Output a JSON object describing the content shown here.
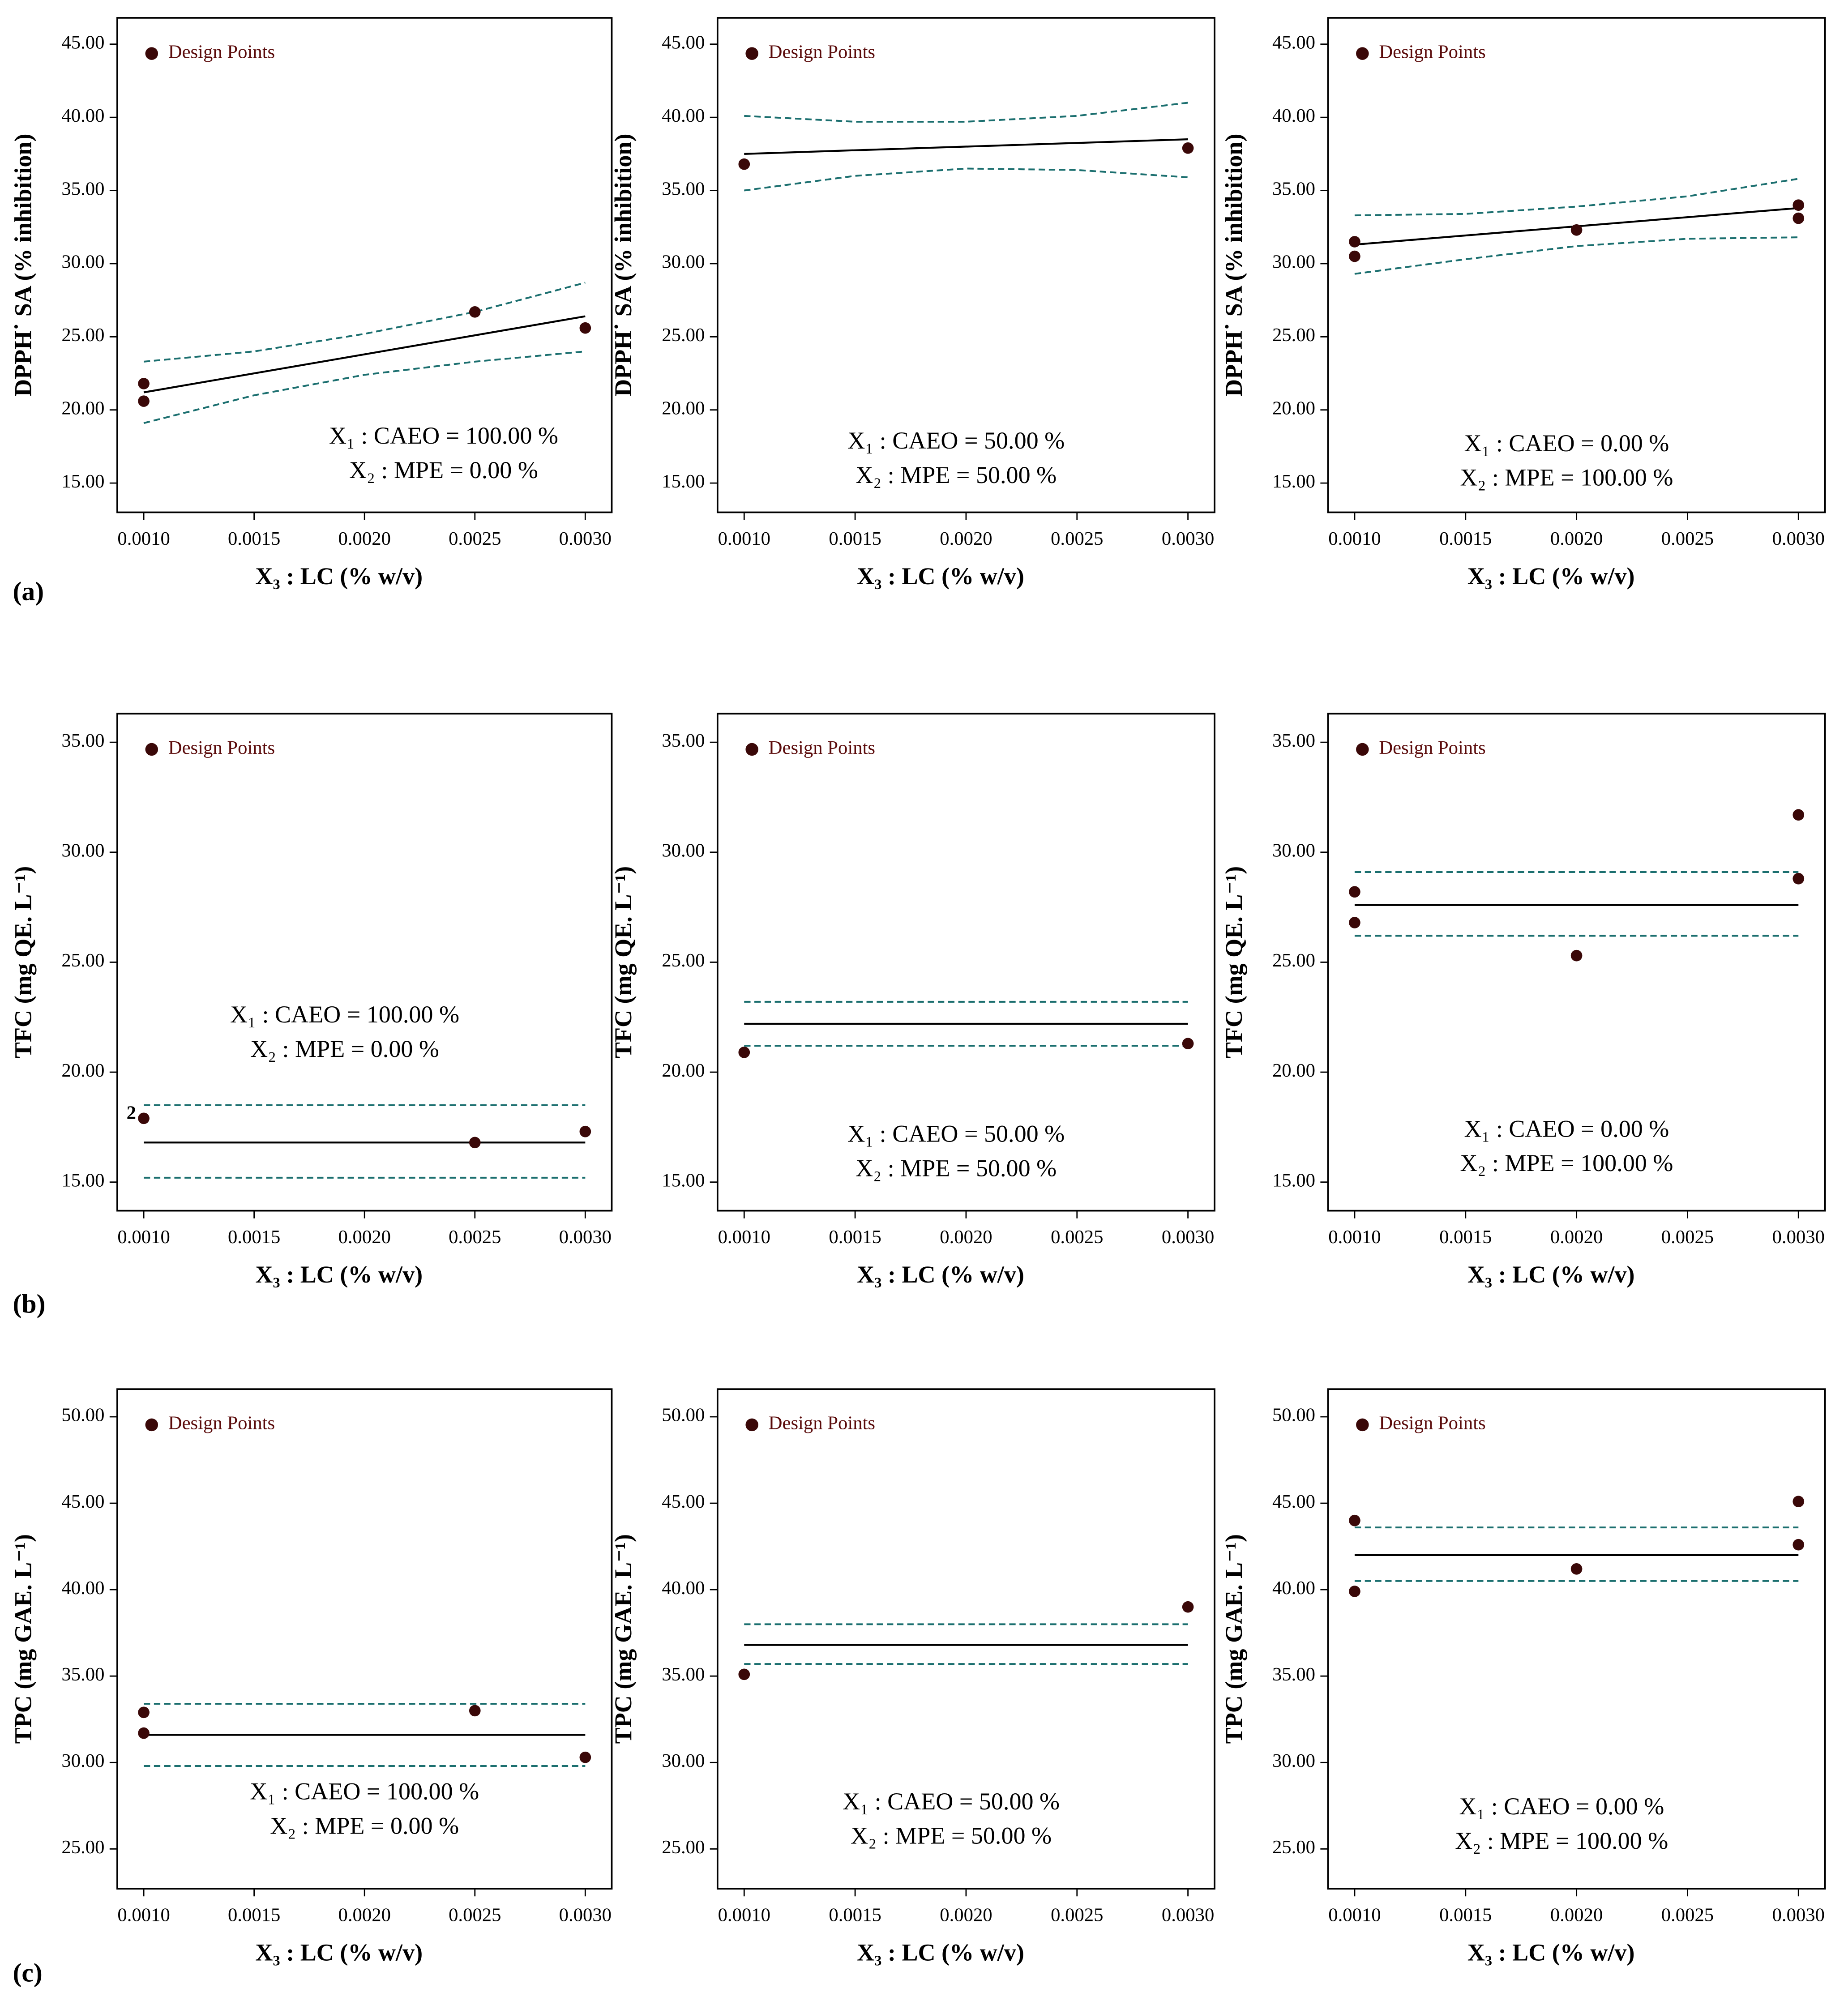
{
  "panel_labels": [
    "(a)",
    "(b)",
    "(c)"
  ],
  "chart_data": [
    {
      "type": "scatter",
      "xlabel": "X₃ : LC (% w/v)",
      "ylabel": "DPPH˙ SA (% inhibition)",
      "annotations": [
        "X₁ : CAEO = 100.00 %",
        "X₂ : MPE = 0.00 %"
      ],
      "xlim": [
        0.00088,
        0.00312
      ],
      "xticks": [
        {
          "value": 0.001,
          "label": "0.0010"
        },
        {
          "value": 0.0015,
          "label": "0.0015"
        },
        {
          "value": 0.002,
          "label": "0.0020"
        },
        {
          "value": 0.0025,
          "label": "0.0025"
        },
        {
          "value": 0.003,
          "label": "0.0030"
        }
      ],
      "ylim": [
        13,
        46.8
      ],
      "yticks": [
        {
          "value": 15,
          "label": "15.00"
        },
        {
          "value": 20,
          "label": "20.00"
        },
        {
          "value": 25,
          "label": "25.00"
        },
        {
          "value": 30,
          "label": "30.00"
        },
        {
          "value": 35,
          "label": "35.00"
        },
        {
          "value": 40,
          "label": "40.00"
        },
        {
          "value": 45,
          "label": "45.00"
        }
      ],
      "points": {
        "name": "Design Points",
        "color": "#3a0808",
        "x": [
          0.001,
          0.001,
          0.0025,
          0.003
        ],
        "values": [
          21.8,
          20.6,
          26.7,
          25.6
        ]
      },
      "fit": {
        "color": "#000000",
        "x": [
          0.001,
          0.003
        ],
        "values": [
          21.2,
          26.4
        ]
      },
      "ci_upper": {
        "color": "#1b6f6f",
        "x": [
          0.001,
          0.0015,
          0.002,
          0.0025,
          0.003
        ],
        "values": [
          23.3,
          24.0,
          25.2,
          26.7,
          28.7
        ]
      },
      "ci_lower": {
        "color": "#1b6f6f",
        "x": [
          0.001,
          0.0015,
          0.002,
          0.0025,
          0.003
        ],
        "values": [
          19.1,
          21.0,
          22.4,
          23.3,
          24.0
        ]
      }
    },
    {
      "type": "scatter",
      "xlabel": "X₃ : LC (% w/v)",
      "ylabel": "DPPH˙ SA (% inhibition)",
      "annotations": [
        "X₁ : CAEO = 50.00 %",
        "X₂ : MPE = 50.00 %"
      ],
      "xlim": [
        0.00088,
        0.00312
      ],
      "xticks": [
        {
          "value": 0.001,
          "label": "0.0010"
        },
        {
          "value": 0.0015,
          "label": "0.0015"
        },
        {
          "value": 0.002,
          "label": "0.0020"
        },
        {
          "value": 0.0025,
          "label": "0.0025"
        },
        {
          "value": 0.003,
          "label": "0.0030"
        }
      ],
      "ylim": [
        13,
        46.8
      ],
      "yticks": [
        {
          "value": 15,
          "label": "15.00"
        },
        {
          "value": 20,
          "label": "20.00"
        },
        {
          "value": 25,
          "label": "25.00"
        },
        {
          "value": 30,
          "label": "30.00"
        },
        {
          "value": 35,
          "label": "35.00"
        },
        {
          "value": 40,
          "label": "40.00"
        },
        {
          "value": 45,
          "label": "45.00"
        }
      ],
      "points": {
        "name": "Design Points",
        "color": "#3a0808",
        "x": [
          0.001,
          0.003
        ],
        "values": [
          36.8,
          37.9
        ]
      },
      "fit": {
        "color": "#000000",
        "x": [
          0.001,
          0.003
        ],
        "values": [
          37.5,
          38.5
        ]
      },
      "ci_upper": {
        "color": "#1b6f6f",
        "x": [
          0.001,
          0.0015,
          0.002,
          0.0025,
          0.003
        ],
        "values": [
          40.1,
          39.7,
          39.7,
          40.1,
          41.0
        ]
      },
      "ci_lower": {
        "color": "#1b6f6f",
        "x": [
          0.001,
          0.0015,
          0.002,
          0.0025,
          0.003
        ],
        "values": [
          35.0,
          36.0,
          36.5,
          36.4,
          35.9
        ]
      }
    },
    {
      "type": "scatter",
      "xlabel": "X₃ : LC (% w/v)",
      "ylabel": "DPPH˙ SA (% inhibition)",
      "annotations": [
        "X₁ : CAEO = 0.00 %",
        "X₂ : MPE = 100.00 %"
      ],
      "xlim": [
        0.00088,
        0.00312
      ],
      "xticks": [
        {
          "value": 0.001,
          "label": "0.0010"
        },
        {
          "value": 0.0015,
          "label": "0.0015"
        },
        {
          "value": 0.002,
          "label": "0.0020"
        },
        {
          "value": 0.0025,
          "label": "0.0025"
        },
        {
          "value": 0.003,
          "label": "0.0030"
        }
      ],
      "ylim": [
        13,
        46.8
      ],
      "yticks": [
        {
          "value": 15,
          "label": "15.00"
        },
        {
          "value": 20,
          "label": "20.00"
        },
        {
          "value": 25,
          "label": "25.00"
        },
        {
          "value": 30,
          "label": "30.00"
        },
        {
          "value": 35,
          "label": "35.00"
        },
        {
          "value": 40,
          "label": "40.00"
        },
        {
          "value": 45,
          "label": "45.00"
        }
      ],
      "points": {
        "name": "Design Points",
        "color": "#3a0808",
        "x": [
          0.001,
          0.001,
          0.002,
          0.003,
          0.003
        ],
        "values": [
          31.5,
          30.5,
          32.3,
          34.0,
          33.1
        ]
      },
      "fit": {
        "color": "#000000",
        "x": [
          0.001,
          0.003
        ],
        "values": [
          31.3,
          33.8
        ]
      },
      "ci_upper": {
        "color": "#1b6f6f",
        "x": [
          0.001,
          0.0015,
          0.002,
          0.0025,
          0.003
        ],
        "values": [
          33.3,
          33.4,
          33.9,
          34.6,
          35.8
        ]
      },
      "ci_lower": {
        "color": "#1b6f6f",
        "x": [
          0.001,
          0.0015,
          0.002,
          0.0025,
          0.003
        ],
        "values": [
          29.3,
          30.3,
          31.2,
          31.7,
          31.8
        ]
      }
    },
    {
      "type": "scatter",
      "xlabel": "X₃ : LC (% w/v)",
      "ylabel": "TFC (mg QE. L⁻¹)",
      "annotations": [
        "X₁ : CAEO = 100.00 %",
        "X₂ : MPE = 0.00 %"
      ],
      "xlim": [
        0.00088,
        0.00312
      ],
      "xticks": [
        {
          "value": 0.001,
          "label": "0.0010"
        },
        {
          "value": 0.0015,
          "label": "0.0015"
        },
        {
          "value": 0.002,
          "label": "0.0020"
        },
        {
          "value": 0.0025,
          "label": "0.0025"
        },
        {
          "value": 0.003,
          "label": "0.0030"
        }
      ],
      "ylim": [
        13.7,
        36.3
      ],
      "yticks": [
        {
          "value": 15,
          "label": "15.00"
        },
        {
          "value": 20,
          "label": "20.00"
        },
        {
          "value": 25,
          "label": "25.00"
        },
        {
          "value": 30,
          "label": "30.00"
        },
        {
          "value": 35,
          "label": "35.00"
        }
      ],
      "points": {
        "name": "Design Points",
        "color": "#3a0808",
        "x": [
          0.001,
          0.0025,
          0.003
        ],
        "values": [
          17.9,
          16.8,
          17.3
        ],
        "point_labels": [
          "2",
          null,
          null
        ]
      },
      "fit": {
        "color": "#000000",
        "x": [
          0.001,
          0.003
        ],
        "values": [
          16.8,
          16.8
        ]
      },
      "ci_upper": {
        "color": "#1b6f6f",
        "x": [
          0.001,
          0.003
        ],
        "values": [
          18.5,
          18.5
        ]
      },
      "ci_lower": {
        "color": "#1b6f6f",
        "x": [
          0.001,
          0.003
        ],
        "values": [
          15.2,
          15.2
        ]
      }
    },
    {
      "type": "scatter",
      "xlabel": "X₃ : LC (% w/v)",
      "ylabel": "TFC (mg QE. L⁻¹)",
      "annotations": [
        "X₁ : CAEO = 50.00 %",
        "X₂ : MPE = 50.00 %"
      ],
      "xlim": [
        0.00088,
        0.00312
      ],
      "xticks": [
        {
          "value": 0.001,
          "label": "0.0010"
        },
        {
          "value": 0.0015,
          "label": "0.0015"
        },
        {
          "value": 0.002,
          "label": "0.0020"
        },
        {
          "value": 0.0025,
          "label": "0.0025"
        },
        {
          "value": 0.003,
          "label": "0.0030"
        }
      ],
      "ylim": [
        13.7,
        36.3
      ],
      "yticks": [
        {
          "value": 15,
          "label": "15.00"
        },
        {
          "value": 20,
          "label": "20.00"
        },
        {
          "value": 25,
          "label": "25.00"
        },
        {
          "value": 30,
          "label": "30.00"
        },
        {
          "value": 35,
          "label": "35.00"
        }
      ],
      "points": {
        "name": "Design Points",
        "color": "#3a0808",
        "x": [
          0.001,
          0.003
        ],
        "values": [
          20.9,
          21.3
        ]
      },
      "fit": {
        "color": "#000000",
        "x": [
          0.001,
          0.003
        ],
        "values": [
          22.2,
          22.2
        ]
      },
      "ci_upper": {
        "color": "#1b6f6f",
        "x": [
          0.001,
          0.003
        ],
        "values": [
          23.2,
          23.2
        ]
      },
      "ci_lower": {
        "color": "#1b6f6f",
        "x": [
          0.001,
          0.003
        ],
        "values": [
          21.2,
          21.2
        ]
      }
    },
    {
      "type": "scatter",
      "xlabel": "X₃ : LC (% w/v)",
      "ylabel": "TFC (mg QE. L⁻¹)",
      "annotations": [
        "X₁ : CAEO = 0.00 %",
        "X₂ : MPE = 100.00 %"
      ],
      "xlim": [
        0.00088,
        0.00312
      ],
      "xticks": [
        {
          "value": 0.001,
          "label": "0.0010"
        },
        {
          "value": 0.0015,
          "label": "0.0015"
        },
        {
          "value": 0.002,
          "label": "0.0020"
        },
        {
          "value": 0.0025,
          "label": "0.0025"
        },
        {
          "value": 0.003,
          "label": "0.0030"
        }
      ],
      "ylim": [
        13.7,
        36.3
      ],
      "yticks": [
        {
          "value": 15,
          "label": "15.00"
        },
        {
          "value": 20,
          "label": "20.00"
        },
        {
          "value": 25,
          "label": "25.00"
        },
        {
          "value": 30,
          "label": "30.00"
        },
        {
          "value": 35,
          "label": "35.00"
        }
      ],
      "points": {
        "name": "Design Points",
        "color": "#3a0808",
        "x": [
          0.001,
          0.001,
          0.002,
          0.003,
          0.003
        ],
        "values": [
          28.2,
          26.8,
          25.3,
          31.7,
          28.8
        ]
      },
      "fit": {
        "color": "#000000",
        "x": [
          0.001,
          0.003
        ],
        "values": [
          27.6,
          27.6
        ]
      },
      "ci_upper": {
        "color": "#1b6f6f",
        "x": [
          0.001,
          0.003
        ],
        "values": [
          29.1,
          29.1
        ]
      },
      "ci_lower": {
        "color": "#1b6f6f",
        "x": [
          0.001,
          0.003
        ],
        "values": [
          26.2,
          26.2
        ]
      }
    },
    {
      "type": "scatter",
      "xlabel": "X₃ : LC (% w/v)",
      "ylabel": "TPC (mg GAE. L⁻¹)",
      "annotations": [
        "X₁ : CAEO = 100.00 %",
        "X₂ : MPE = 0.00 %"
      ],
      "xlim": [
        0.00088,
        0.00312
      ],
      "xticks": [
        {
          "value": 0.001,
          "label": "0.0010"
        },
        {
          "value": 0.0015,
          "label": "0.0015"
        },
        {
          "value": 0.002,
          "label": "0.0020"
        },
        {
          "value": 0.0025,
          "label": "0.0025"
        },
        {
          "value": 0.003,
          "label": "0.0030"
        }
      ],
      "ylim": [
        22.7,
        51.6
      ],
      "yticks": [
        {
          "value": 25,
          "label": "25.00"
        },
        {
          "value": 30,
          "label": "30.00"
        },
        {
          "value": 35,
          "label": "35.00"
        },
        {
          "value": 40,
          "label": "40.00"
        },
        {
          "value": 45,
          "label": "45.00"
        },
        {
          "value": 50,
          "label": "50.00"
        }
      ],
      "points": {
        "name": "Design Points",
        "color": "#3a0808",
        "x": [
          0.001,
          0.001,
          0.0025,
          0.003
        ],
        "values": [
          32.9,
          31.7,
          33.0,
          30.3
        ]
      },
      "fit": {
        "color": "#000000",
        "x": [
          0.001,
          0.003
        ],
        "values": [
          31.6,
          31.6
        ]
      },
      "ci_upper": {
        "color": "#1b6f6f",
        "x": [
          0.001,
          0.003
        ],
        "values": [
          33.4,
          33.4
        ]
      },
      "ci_lower": {
        "color": "#1b6f6f",
        "x": [
          0.001,
          0.003
        ],
        "values": [
          29.8,
          29.8
        ]
      }
    },
    {
      "type": "scatter",
      "xlabel": "X₃ : LC (% w/v)",
      "ylabel": "TPC (mg GAE. L⁻¹)",
      "annotations": [
        "X₁ : CAEO = 50.00 %",
        "X₂ : MPE = 50.00 %"
      ],
      "xlim": [
        0.00088,
        0.00312
      ],
      "xticks": [
        {
          "value": 0.001,
          "label": "0.0010"
        },
        {
          "value": 0.0015,
          "label": "0.0015"
        },
        {
          "value": 0.002,
          "label": "0.0020"
        },
        {
          "value": 0.0025,
          "label": "0.0025"
        },
        {
          "value": 0.003,
          "label": "0.0030"
        }
      ],
      "ylim": [
        22.7,
        51.6
      ],
      "yticks": [
        {
          "value": 25,
          "label": "25.00"
        },
        {
          "value": 30,
          "label": "30.00"
        },
        {
          "value": 35,
          "label": "35.00"
        },
        {
          "value": 40,
          "label": "40.00"
        },
        {
          "value": 45,
          "label": "45.00"
        },
        {
          "value": 50,
          "label": "50.00"
        }
      ],
      "points": {
        "name": "Design Points",
        "color": "#3a0808",
        "x": [
          0.001,
          0.003
        ],
        "values": [
          35.1,
          39.0
        ]
      },
      "fit": {
        "color": "#000000",
        "x": [
          0.001,
          0.003
        ],
        "values": [
          36.8,
          36.8
        ]
      },
      "ci_upper": {
        "color": "#1b6f6f",
        "x": [
          0.001,
          0.003
        ],
        "values": [
          38.0,
          38.0
        ]
      },
      "ci_lower": {
        "color": "#1b6f6f",
        "x": [
          0.001,
          0.003
        ],
        "values": [
          35.7,
          35.7
        ]
      }
    },
    {
      "type": "scatter",
      "xlabel": "X₃ : LC (% w/v)",
      "ylabel": "TPC (mg GAE. L⁻¹)",
      "annotations": [
        "X₁ : CAEO = 0.00 %",
        "X₂ : MPE = 100.00 %"
      ],
      "xlim": [
        0.00088,
        0.00312
      ],
      "xticks": [
        {
          "value": 0.001,
          "label": "0.0010"
        },
        {
          "value": 0.0015,
          "label": "0.0015"
        },
        {
          "value": 0.002,
          "label": "0.0020"
        },
        {
          "value": 0.0025,
          "label": "0.0025"
        },
        {
          "value": 0.003,
          "label": "0.0030"
        }
      ],
      "ylim": [
        22.7,
        51.6
      ],
      "yticks": [
        {
          "value": 25,
          "label": "25.00"
        },
        {
          "value": 30,
          "label": "30.00"
        },
        {
          "value": 35,
          "label": "35.00"
        },
        {
          "value": 40,
          "label": "40.00"
        },
        {
          "value": 45,
          "label": "45.00"
        },
        {
          "value": 50,
          "label": "50.00"
        }
      ],
      "points": {
        "name": "Design Points",
        "color": "#3a0808",
        "x": [
          0.001,
          0.001,
          0.002,
          0.003,
          0.003
        ],
        "values": [
          44.0,
          39.9,
          41.2,
          45.1,
          42.6
        ]
      },
      "fit": {
        "color": "#000000",
        "x": [
          0.001,
          0.003
        ],
        "values": [
          42.0,
          42.0
        ]
      },
      "ci_upper": {
        "color": "#1b6f6f",
        "x": [
          0.001,
          0.003
        ],
        "values": [
          43.6,
          43.6
        ]
      },
      "ci_lower": {
        "color": "#1b6f6f",
        "x": [
          0.001,
          0.003
        ],
        "values": [
          40.5,
          40.5
        ]
      }
    }
  ]
}
